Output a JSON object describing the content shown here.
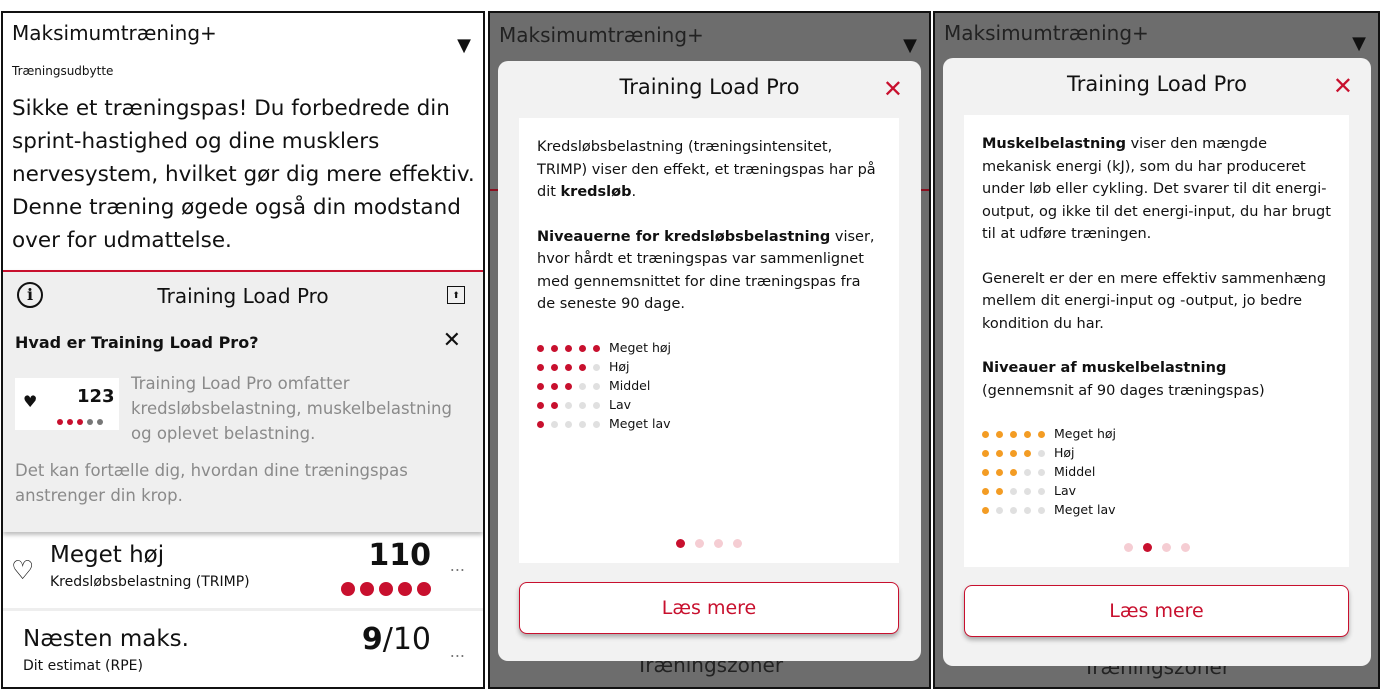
{
  "colors": {
    "accent": "#c8102e",
    "muscle": "#f39c24",
    "dot_off": "#e0e0e0",
    "overlay": "#6d6d6d"
  },
  "panel1": {
    "title": "Maksimumtræning+",
    "dropdown_icon": "triangle-down-icon",
    "subtitle": "Træningsudbytte",
    "effect_text": "Sikke et træningspas! Du forbedrede din sprint-hastighed og dine musklers nervesystem, hvilket gør dig mere effektiv. Denne træning øgede også din modstand over for udmattelse.",
    "tlp_title": "Training Load Pro",
    "info_title": "Hvad er Training Load Pro?",
    "example_value": "123",
    "example_dots_on": 3,
    "info_text1": "Training Load Pro omfatter kredsløbsbelastning, muskelbelastning og oplevet belastning.",
    "info_text2": "Det kan fortælle dig, hvordan dine træningspas anstrenger din krop.",
    "rows": [
      {
        "level": "Meget høj",
        "label": "Kredsløbsbelastning (TRIMP)",
        "value": "110",
        "dots_on": 5
      },
      {
        "level": "Næsten maks.",
        "label": "Dit estimat (RPE)",
        "value_bold": "9",
        "value_rest": "/10"
      }
    ],
    "more_label": "..."
  },
  "modal_bg": {
    "title": "Maksimumtræning+",
    "bottom": "Træningszoner"
  },
  "modal1": {
    "title": "Training Load Pro",
    "p1_a": "Kredsløbsbelastning (træningsintensitet, TRIMP) viser den effekt, et træningspas har på dit ",
    "p1_b": "kredsløb",
    "p1_c": ".",
    "p2_a": "Niveauerne for kredsløbsbelastning",
    "p2_b": " viser, hvor hårdt et træningspas var sammenlignet med gennemsnittet for dine træningspas fra de seneste 90 dage.",
    "levels": [
      "Meget høj",
      "Høj",
      "Middel",
      "Lav",
      "Meget lav"
    ],
    "page": 1,
    "pages": 4,
    "button": "Læs mere"
  },
  "modal2": {
    "title": "Training Load Pro",
    "p1_a": "Muskelbelastning",
    "p1_b": " viser den mængde mekanisk energi (kJ), som du har produceret under løb eller cykling. Det svarer til dit energi-output, og ikke til det energi-input, du har brugt til at udføre træningen.",
    "p2": "Generelt er der en mere effektiv sammenhæng mellem dit energi-input og -output, jo bedre kondition du har.",
    "p3_a": "Niveauer af muskelbelastning",
    "p3_b": "(gennemsnit af 90 dages træningspas)",
    "levels": [
      "Meget høj",
      "Høj",
      "Middel",
      "Lav",
      "Meget lav"
    ],
    "page": 2,
    "pages": 4,
    "button": "Læs mere"
  }
}
